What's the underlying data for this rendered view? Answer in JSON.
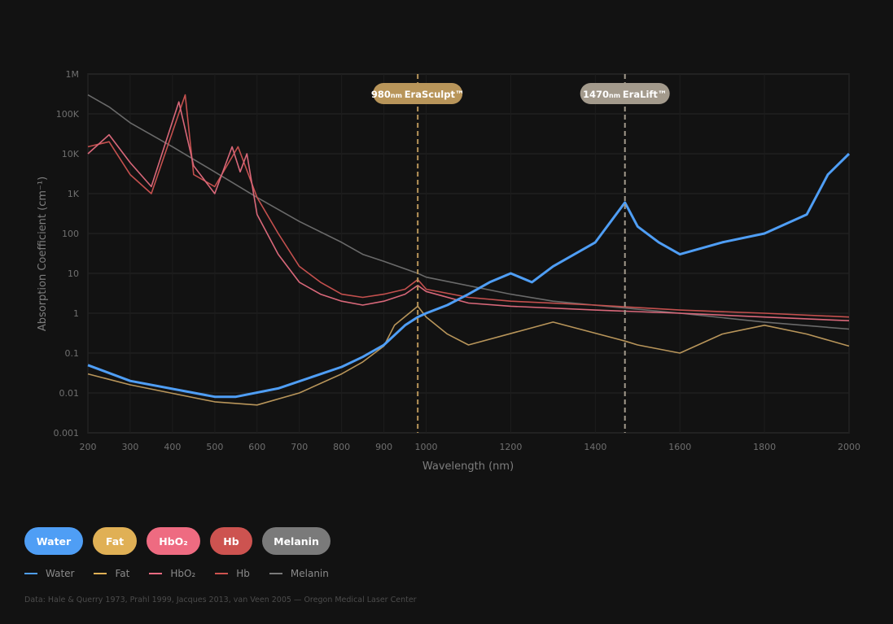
{
  "chart_data": {
    "type": "line",
    "title": "",
    "xlabel": "Wavelength (nm)",
    "ylabel": "Absorption Coefficient (cm⁻¹)",
    "xlim": [
      200,
      2000
    ],
    "ylim": [
      0.001,
      1000000
    ],
    "yscale": "log",
    "grid": true,
    "x_ticks": [
      "200",
      "300",
      "400",
      "500",
      "600",
      "700",
      "800",
      "900",
      "1000",
      "1200",
      "1400",
      "1600",
      "1800",
      "2000"
    ],
    "x_tick_values": [
      200,
      300,
      400,
      500,
      600,
      700,
      800,
      900,
      1000,
      1200,
      1400,
      1600,
      1800,
      2000
    ],
    "y_ticks": [
      "0.001",
      "0.01",
      "0.1",
      "1",
      "10",
      "100",
      "1K",
      "10K",
      "100K",
      "1M"
    ],
    "y_tick_values": [
      0.001,
      0.01,
      0.1,
      1,
      10,
      100,
      1000,
      10000,
      100000,
      1000000
    ],
    "markers": [
      {
        "x": 980,
        "wavelength": "980",
        "unit": "nm",
        "name": "EraSculpt™",
        "color": "#b8955a"
      },
      {
        "x": 1470,
        "wavelength": "1470",
        "unit": "nm",
        "name": "EraLift™",
        "color": "#a39a8c"
      }
    ],
    "series": [
      {
        "name": "Water",
        "color": "#4f9ef5",
        "width": 3,
        "points": [
          [
            200,
            0.05
          ],
          [
            300,
            0.02
          ],
          [
            500,
            0.008
          ],
          [
            550,
            0.008
          ],
          [
            650,
            0.013
          ],
          [
            800,
            0.045
          ],
          [
            850,
            0.08
          ],
          [
            900,
            0.16
          ],
          [
            950,
            0.5
          ],
          [
            980,
            0.8
          ],
          [
            1000,
            1.0
          ],
          [
            1050,
            1.6
          ],
          [
            1100,
            3
          ],
          [
            1150,
            6
          ],
          [
            1200,
            10
          ],
          [
            1250,
            6
          ],
          [
            1300,
            15
          ],
          [
            1400,
            60
          ],
          [
            1470,
            600
          ],
          [
            1500,
            150
          ],
          [
            1550,
            60
          ],
          [
            1600,
            30
          ],
          [
            1700,
            60
          ],
          [
            1800,
            100
          ],
          [
            1900,
            300
          ],
          [
            1950,
            3000
          ],
          [
            2000,
            10000
          ]
        ]
      },
      {
        "name": "Fat",
        "color": "#b8955a",
        "width": 1.6,
        "points": [
          [
            200,
            0.03
          ],
          [
            300,
            0.016
          ],
          [
            500,
            0.006
          ],
          [
            600,
            0.005
          ],
          [
            700,
            0.01
          ],
          [
            800,
            0.03
          ],
          [
            850,
            0.06
          ],
          [
            900,
            0.15
          ],
          [
            925,
            0.5
          ],
          [
            980,
            1.5
          ],
          [
            1000,
            0.8
          ],
          [
            1050,
            0.3
          ],
          [
            1100,
            0.16
          ],
          [
            1300,
            0.6
          ],
          [
            1470,
            0.2
          ],
          [
            1500,
            0.16
          ],
          [
            1600,
            0.1
          ],
          [
            1700,
            0.3
          ],
          [
            1800,
            0.5
          ],
          [
            1900,
            0.3
          ],
          [
            2000,
            0.15
          ]
        ]
      },
      {
        "name": "HbO₂",
        "color": "#d9687a",
        "width": 1.6,
        "points": [
          [
            200,
            10000
          ],
          [
            250,
            30000
          ],
          [
            300,
            6000
          ],
          [
            350,
            1500
          ],
          [
            415,
            200000
          ],
          [
            450,
            5000
          ],
          [
            500,
            1000
          ],
          [
            541,
            15000
          ],
          [
            560,
            3500
          ],
          [
            576,
            10000
          ],
          [
            600,
            300
          ],
          [
            650,
            30
          ],
          [
            700,
            6
          ],
          [
            750,
            3
          ],
          [
            800,
            2
          ],
          [
            850,
            1.6
          ],
          [
            900,
            2
          ],
          [
            950,
            3
          ],
          [
            980,
            5
          ],
          [
            1000,
            3.5
          ],
          [
            1100,
            1.8
          ],
          [
            1200,
            1.5
          ],
          [
            1400,
            1.2
          ],
          [
            1600,
            1.0
          ],
          [
            1800,
            0.8
          ],
          [
            2000,
            0.65
          ]
        ]
      },
      {
        "name": "Hb",
        "color": "#c4504e",
        "width": 1.6,
        "points": [
          [
            200,
            15000
          ],
          [
            250,
            20000
          ],
          [
            300,
            3000
          ],
          [
            350,
            1000
          ],
          [
            430,
            300000
          ],
          [
            450,
            3000
          ],
          [
            500,
            1500
          ],
          [
            555,
            15000
          ],
          [
            600,
            800
          ],
          [
            650,
            100
          ],
          [
            700,
            15
          ],
          [
            750,
            6
          ],
          [
            800,
            3
          ],
          [
            850,
            2.5
          ],
          [
            900,
            3
          ],
          [
            950,
            4
          ],
          [
            980,
            7
          ],
          [
            1000,
            4
          ],
          [
            1100,
            2.5
          ],
          [
            1200,
            2
          ],
          [
            1400,
            1.6
          ],
          [
            1600,
            1.2
          ],
          [
            1800,
            1.0
          ],
          [
            2000,
            0.8
          ]
        ]
      },
      {
        "name": "Melanin",
        "color": "#6a6a6a",
        "width": 1.6,
        "points": [
          [
            200,
            300000
          ],
          [
            250,
            150000
          ],
          [
            300,
            60000
          ],
          [
            400,
            15000
          ],
          [
            500,
            3500
          ],
          [
            600,
            800
          ],
          [
            700,
            200
          ],
          [
            800,
            60
          ],
          [
            850,
            30
          ],
          [
            900,
            20
          ],
          [
            980,
            10
          ],
          [
            1000,
            8
          ],
          [
            1200,
            3
          ],
          [
            1300,
            2
          ],
          [
            1600,
            1
          ],
          [
            1800,
            0.6
          ],
          [
            2000,
            0.4
          ]
        ]
      }
    ]
  },
  "filters": [
    {
      "label": "Water",
      "color": "#4f9ef5"
    },
    {
      "label": "Fat",
      "color": "#e0b055"
    },
    {
      "label": "HbO₂",
      "color": "#ee6b81"
    },
    {
      "label": "Hb",
      "color": "#cd5350"
    },
    {
      "label": "Melanin",
      "color": "#7a7a7a"
    }
  ],
  "legend": [
    {
      "label": "Water",
      "color": "#4f9ef5"
    },
    {
      "label": "Fat",
      "color": "#e0b055"
    },
    {
      "label": "HbO₂",
      "color": "#ee6b81"
    },
    {
      "label": "Hb",
      "color": "#cd5350"
    },
    {
      "label": "Melanin",
      "color": "#7a7a7a"
    }
  ],
  "source": "Data: Hale & Querry 1973, Prahl 1999, Jacques 2013, van Veen 2005 — Oregon Medical Laser Center"
}
